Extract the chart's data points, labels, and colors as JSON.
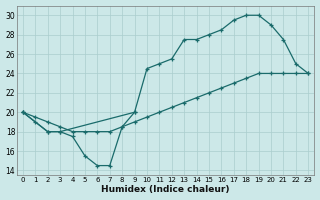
{
  "xlabel": "Humidex (Indice chaleur)",
  "bg_color": "#cce8e8",
  "line_color": "#1a6b6b",
  "grid_color": "#aacece",
  "xlim": [
    -0.5,
    23.5
  ],
  "ylim": [
    13.5,
    31
  ],
  "xticks": [
    0,
    1,
    2,
    3,
    4,
    5,
    6,
    7,
    8,
    9,
    10,
    11,
    12,
    13,
    14,
    15,
    16,
    17,
    18,
    19,
    20,
    21,
    22,
    23
  ],
  "yticks": [
    14,
    16,
    18,
    20,
    22,
    24,
    26,
    28,
    30
  ],
  "series": [
    {
      "x": [
        0,
        1,
        2,
        3,
        4,
        5,
        6,
        7,
        8,
        9
      ],
      "y": [
        20,
        19,
        18,
        18,
        17.5,
        15.5,
        14.5,
        14.5,
        18.5,
        20
      ]
    },
    {
      "x": [
        0,
        2,
        3,
        9,
        10,
        11,
        12,
        13,
        14,
        15,
        16,
        17,
        18,
        19,
        20,
        21,
        22,
        23
      ],
      "y": [
        20,
        18,
        18,
        20,
        24.5,
        25,
        25.5,
        27.5,
        27.5,
        28,
        28.5,
        29.5,
        30,
        30,
        29,
        27.5,
        25,
        24
      ]
    },
    {
      "x": [
        0,
        1,
        2,
        3,
        4,
        5,
        6,
        7,
        8,
        9,
        10,
        11,
        12,
        13,
        14,
        15,
        16,
        17,
        18,
        19,
        20,
        21,
        22,
        23
      ],
      "y": [
        20,
        19.5,
        19,
        18.5,
        18,
        18,
        18,
        18,
        18.5,
        19,
        19.5,
        20,
        20.5,
        21,
        21.5,
        22,
        22.5,
        23,
        23.5,
        24,
        24,
        24,
        24,
        24
      ]
    }
  ]
}
